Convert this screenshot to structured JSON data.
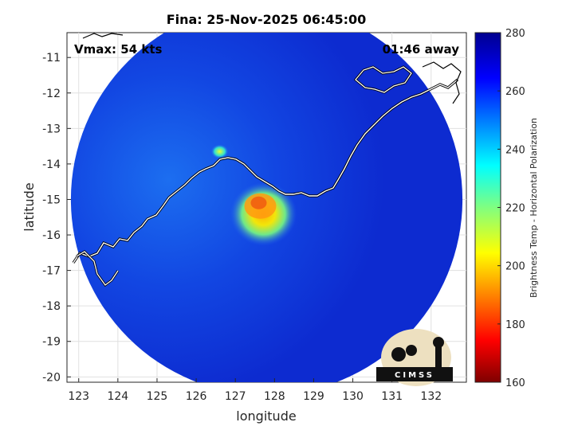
{
  "chart_data": {
    "type": "heatmap",
    "title": "Fina: 25-Nov-2025 06:45:00",
    "xlabel": "longitude",
    "ylabel": "latitude",
    "xlim": [
      122.7,
      132.9
    ],
    "ylim": [
      -20.15,
      -10.3
    ],
    "xticks": [
      123,
      124,
      125,
      126,
      127,
      128,
      129,
      130,
      131,
      132
    ],
    "yticks": [
      -11,
      -12,
      -13,
      -14,
      -15,
      -16,
      -17,
      -18,
      -19,
      -20
    ],
    "grid": true,
    "annotations": {
      "vmax": "Vmax: 54 kts",
      "away": "01:46 away"
    },
    "colorbar": {
      "label": "Brightness Temp - Horizontal Polarization",
      "range": [
        160,
        280
      ],
      "ticks": [
        160,
        180,
        200,
        220,
        240,
        260,
        280
      ],
      "colormap": "jet"
    },
    "swath": {
      "center_lon": 127.8,
      "center_lat": -15.0,
      "radius_deg": 5.0
    },
    "background_value": 268,
    "storm_core": {
      "lon": 127.8,
      "lat": -15.5,
      "min_value": 195
    },
    "logo": "CIMSS"
  }
}
